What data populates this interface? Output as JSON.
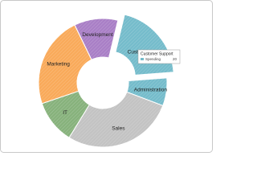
{
  "chart_data": {
    "type": "doughnut",
    "categories": [
      "Development",
      "Customer Support",
      "Administration",
      "Sales",
      "IT",
      "Marketing"
    ],
    "values": [
      11,
      20,
      7,
      28,
      11,
      23
    ],
    "colors": [
      "#a97fc6",
      "#75bccb",
      "#75bccb",
      "#c3c3c3",
      "#87b27c",
      "#f9aa5a"
    ],
    "exploded": 1,
    "tooltip": {
      "category": "Customer Support",
      "label": "Spending",
      "value": 20
    }
  }
}
